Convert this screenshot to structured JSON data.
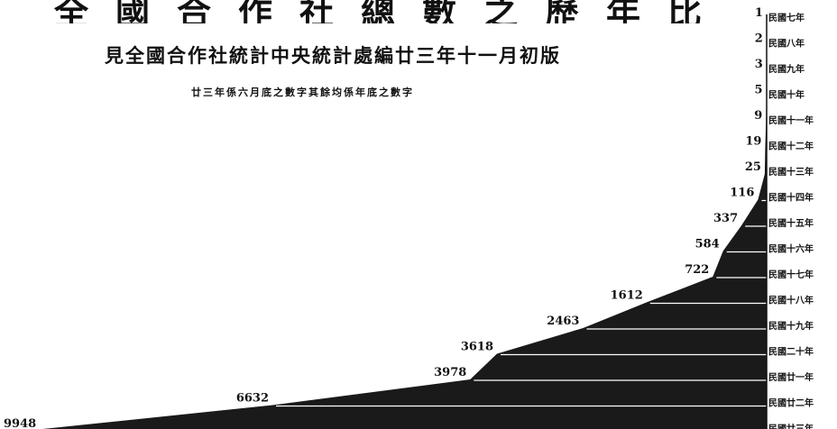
{
  "header": {
    "title": "全國合作社總數之歷年比較",
    "subtitle": "見全國合作社統計中央統計處編廿三年十一月初版",
    "note": "廿三年係六月底之數字其餘均係年底之數字"
  },
  "chart_data": {
    "type": "area",
    "orientation": "horizontal",
    "title": "全國合作社總數之歷年比較",
    "categories": [
      "民國七年",
      "民國八年",
      "民國九年",
      "民國十年",
      "民國十一年",
      "民國十二年",
      "民國十三年",
      "民國十四年",
      "民國十五年",
      "民國十六年",
      "民國十七年",
      "民國十八年",
      "民國十九年",
      "民國二十年",
      "民國廿一年",
      "民國廿二年",
      "民國廿三年"
    ],
    "values": [
      1,
      2,
      3,
      5,
      9,
      19,
      25,
      116,
      337,
      584,
      722,
      1612,
      2463,
      3618,
      3978,
      6632,
      9948
    ],
    "value_labels": [
      "1",
      "2",
      "3",
      "5",
      "9",
      "19",
      "25",
      "116",
      "337",
      "584",
      "722",
      "1612",
      "2463",
      "3618",
      "3978",
      "6632",
      "9948"
    ],
    "grid": false,
    "legend": "none",
    "fill_color": "#1a1a1a"
  }
}
